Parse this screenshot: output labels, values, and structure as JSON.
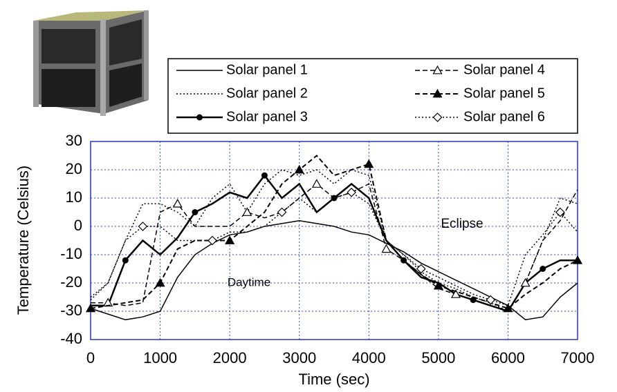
{
  "chart_data": {
    "type": "line",
    "x_label": "Time (sec)",
    "y_label": "Temperature (Celsius)",
    "annotations": [
      "Daytime",
      "Eclipse"
    ],
    "x": [
      0,
      250,
      500,
      750,
      1000,
      1250,
      1500,
      1750,
      2000,
      2250,
      2500,
      2750,
      3000,
      3250,
      3500,
      3750,
      4000,
      4250,
      4500,
      4750,
      5000,
      5250,
      5500,
      5750,
      6000,
      6250,
      6500,
      6750,
      7000
    ],
    "series": [
      {
        "name": "Solar panel 1",
        "color": "#000000",
        "dash": "solid",
        "width": 1.5,
        "marker": "none",
        "values": [
          -29,
          -31,
          -33,
          -32,
          -30,
          -18,
          -10,
          -6,
          -3,
          -2,
          0,
          1,
          2,
          1,
          0,
          -2,
          -3,
          -6,
          -9,
          -13,
          -16,
          -19,
          -22,
          -25,
          -28,
          -33,
          -32,
          -25,
          -20
        ]
      },
      {
        "name": "Solar panel 2",
        "color": "#000000",
        "dash": "dotted",
        "width": 1.5,
        "marker": "none",
        "values": [
          -25,
          -20,
          -5,
          8,
          8,
          5,
          0,
          10,
          15,
          5,
          15,
          20,
          18,
          20,
          15,
          20,
          18,
          -5,
          -10,
          -16,
          -20,
          -22,
          -25,
          -27,
          -30,
          -20,
          -5,
          10,
          8
        ]
      },
      {
        "name": "Solar panel 3",
        "color": "#000000",
        "dash": "solid",
        "width": 2.5,
        "marker": "circle-filled",
        "values": [
          -28,
          -28,
          -12,
          -5,
          -10,
          -4,
          5,
          8,
          12,
          10,
          18,
          10,
          15,
          5,
          10,
          15,
          10,
          -5,
          -12,
          -18,
          -20,
          -24,
          -26,
          -28,
          -30,
          -20,
          -15,
          -12,
          -12
        ]
      },
      {
        "name": "Solar panel 4",
        "color": "#000000",
        "dash": "dashed",
        "width": 1.5,
        "marker": "triangle-open",
        "values": [
          -27,
          -27,
          -28,
          -27,
          5,
          8,
          0,
          0,
          0,
          5,
          3,
          5,
          10,
          15,
          10,
          12,
          15,
          -8,
          -12,
          -17,
          -22,
          -24,
          -26,
          -28,
          -30,
          -20,
          -5,
          2,
          13
        ]
      },
      {
        "name": "Solar panel 5",
        "color": "#000000",
        "dash": "dashed",
        "width": 2,
        "marker": "triangle-filled",
        "values": [
          -29,
          -28,
          -27,
          -26,
          -20,
          -8,
          -5,
          -5,
          -5,
          0,
          5,
          15,
          20,
          25,
          18,
          20,
          22,
          -5,
          -12,
          -17,
          -21,
          -23,
          -25,
          -27,
          -29,
          -24,
          -20,
          -15,
          -12
        ]
      },
      {
        "name": "Solar panel 6",
        "color": "#000000",
        "dash": "dotted",
        "width": 1.5,
        "marker": "diamond-open",
        "values": [
          -26,
          -20,
          -5,
          0,
          0,
          -5,
          -5,
          -5,
          -2,
          -2,
          0,
          5,
          10,
          5,
          10,
          12,
          8,
          -5,
          -10,
          -15,
          -18,
          -21,
          -24,
          -26,
          -28,
          -10,
          -3,
          5,
          -2
        ]
      }
    ],
    "xlim": [
      0,
      7000
    ],
    "ylim": [
      -40,
      30
    ],
    "xticks": [
      0,
      1000,
      2000,
      3000,
      4000,
      5000,
      6000,
      7000
    ],
    "yticks": [
      -40,
      -30,
      -20,
      -10,
      0,
      10,
      20,
      30
    ],
    "grid": true
  }
}
